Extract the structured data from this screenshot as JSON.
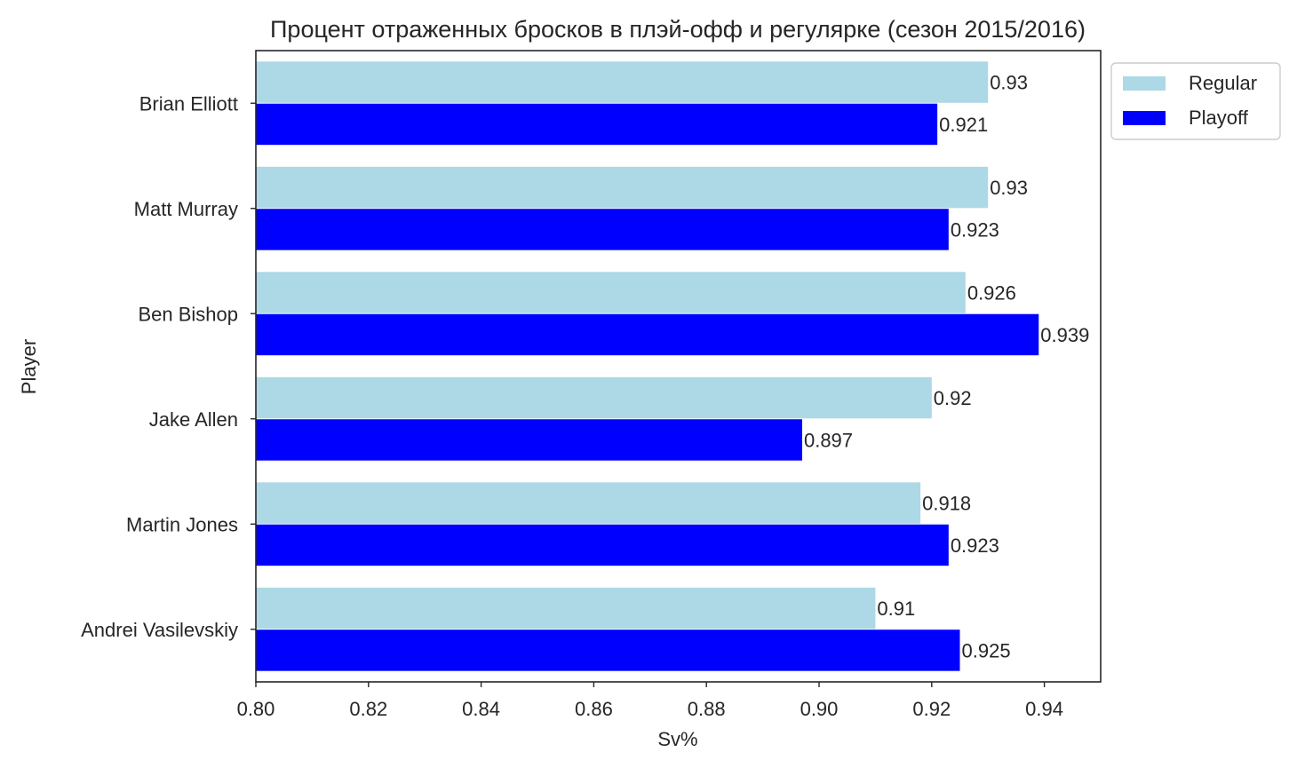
{
  "chart_data": {
    "type": "bar",
    "orientation": "horizontal",
    "title": "Процент отраженных бросков в плэй-офф и регулярке (сезон 2015/2016)",
    "xlabel": "Sv%",
    "ylabel": "Player",
    "categories": [
      "Brian Elliott",
      "Matt Murray",
      "Ben Bishop",
      "Jake Allen",
      "Martin Jones",
      "Andrei Vasilevskiy"
    ],
    "series": [
      {
        "name": "Regular",
        "color": "#add8e6",
        "values": [
          0.93,
          0.93,
          0.926,
          0.92,
          0.918,
          0.91
        ],
        "labels": [
          "0.93",
          "0.93",
          "0.926",
          "0.92",
          "0.918",
          "0.91"
        ]
      },
      {
        "name": "Playoff",
        "color": "#0000ff",
        "values": [
          0.921,
          0.923,
          0.939,
          0.897,
          0.923,
          0.925
        ],
        "labels": [
          "0.921",
          "0.923",
          "0.939",
          "0.897",
          "0.923",
          "0.925"
        ]
      }
    ],
    "xlim": [
      0.8,
      0.95
    ],
    "xticks": [
      "0.80",
      "0.82",
      "0.84",
      "0.86",
      "0.88",
      "0.90",
      "0.92",
      "0.94"
    ],
    "grid": false,
    "legend_position": "outside upper right"
  }
}
